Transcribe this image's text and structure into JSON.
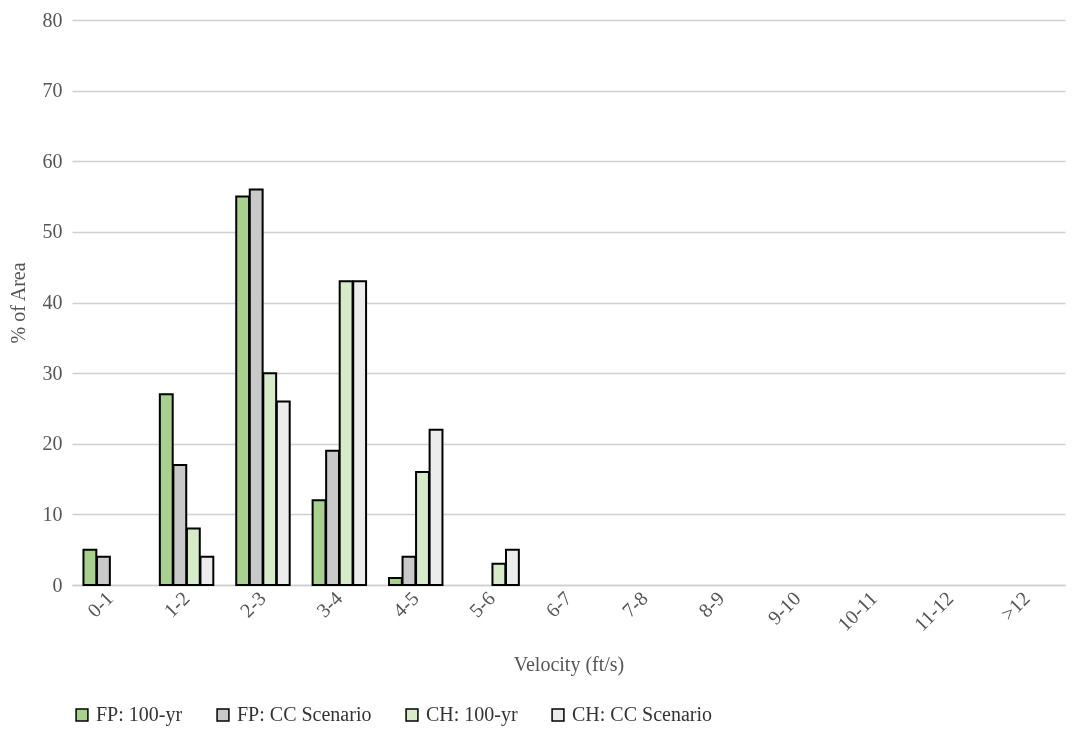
{
  "chart_data": {
    "type": "bar",
    "xlabel": "Velocity (ft/s)",
    "ylabel": "% of Area",
    "categories": [
      "0-1",
      "1-2",
      "2-3",
      "3-4",
      "4-5",
      "5-6",
      "6-7",
      "7-8",
      "8-9",
      "9-10",
      "10-11",
      "11-12",
      ">12"
    ],
    "series": [
      {
        "name": "FP: 100-yr",
        "color": "#a9d18e",
        "values": [
          5,
          27,
          55,
          12,
          1,
          null,
          null,
          null,
          null,
          null,
          null,
          null,
          null
        ]
      },
      {
        "name": "FP: CC Scenario",
        "color": "#c9c9c9",
        "values": [
          4,
          17,
          56,
          19,
          4,
          null,
          null,
          null,
          null,
          null,
          null,
          null,
          null
        ]
      },
      {
        "name": "CH: 100-yr",
        "color": "#d6ebc8",
        "values": [
          null,
          8,
          30,
          43,
          16,
          3,
          null,
          null,
          null,
          null,
          null,
          null,
          null
        ]
      },
      {
        "name": "CH: CC Scenario",
        "color": "#ececec",
        "values": [
          null,
          4,
          26,
          43,
          22,
          5,
          null,
          null,
          null,
          null,
          null,
          null,
          null
        ]
      }
    ],
    "ylim": [
      0,
      80
    ],
    "yticks": [
      0,
      10,
      20,
      30,
      40,
      50,
      60,
      70,
      80
    ],
    "grid": "y",
    "legend": "bottom"
  }
}
